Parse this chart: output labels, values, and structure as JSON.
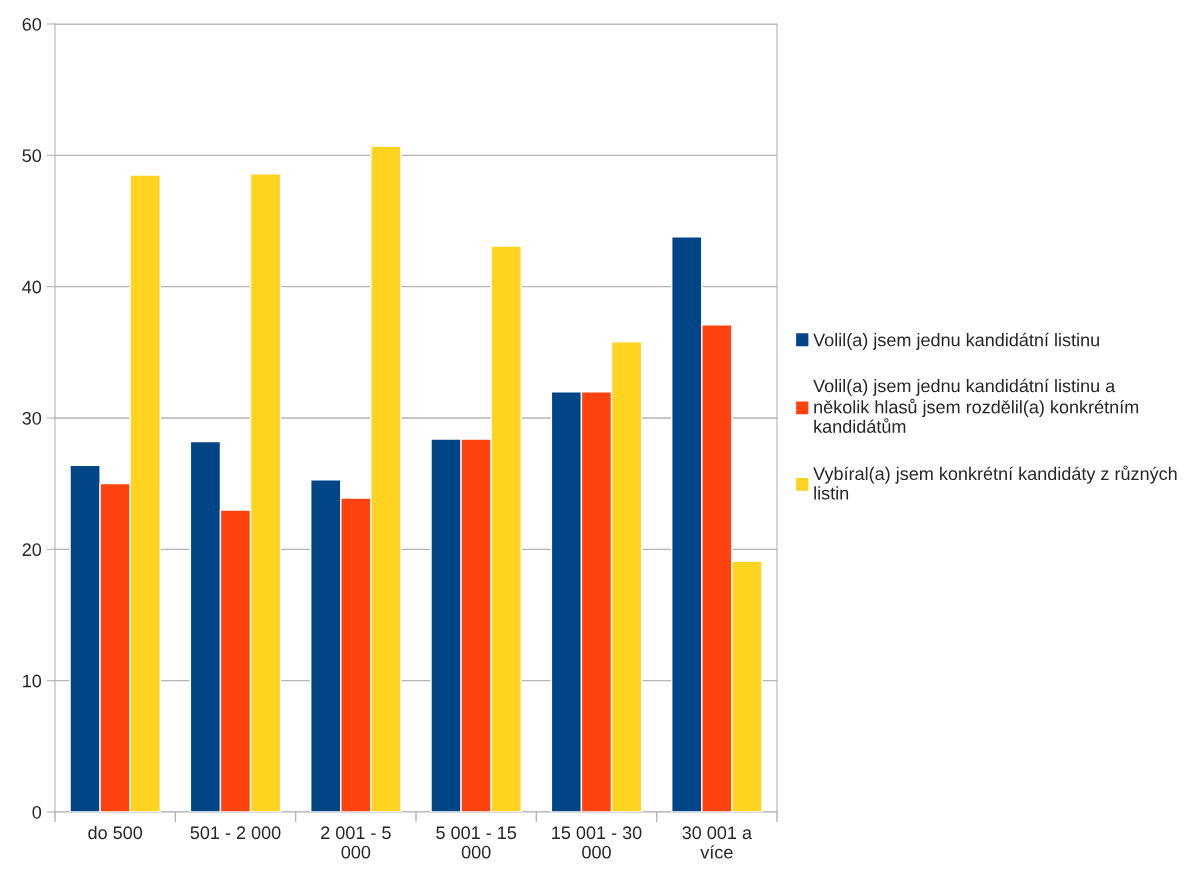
{
  "chart_data": {
    "type": "bar",
    "categories": [
      "do 500",
      "501 - 2 000",
      "2 001 - 5 000",
      "5 001 - 15 000",
      "15 001 - 30 000",
      "30 001 a více"
    ],
    "series": [
      {
        "name": "Volil(a) jsem jednu kandidátní listinu",
        "color": "#004586",
        "values": [
          26.4,
          28.2,
          25.3,
          28.4,
          32.0,
          43.8
        ]
      },
      {
        "name": "Volil(a) jsem jednu kandidátní listinu a několik hlasů jsem rozdělil(a) konkrétním kandidátům",
        "color": "#ff420e",
        "values": [
          25.0,
          23.0,
          23.9,
          28.4,
          32.0,
          37.1
        ]
      },
      {
        "name": "Vybíral(a) jsem konkrétní kandidáty z různých listin",
        "color": "#ffd320",
        "values": [
          48.5,
          48.6,
          50.7,
          43.1,
          35.8,
          19.1
        ]
      }
    ],
    "ylim": [
      0,
      60
    ],
    "yticks": [
      0,
      10,
      20,
      30,
      40,
      50,
      60
    ],
    "grid": "y",
    "legend": "right"
  }
}
